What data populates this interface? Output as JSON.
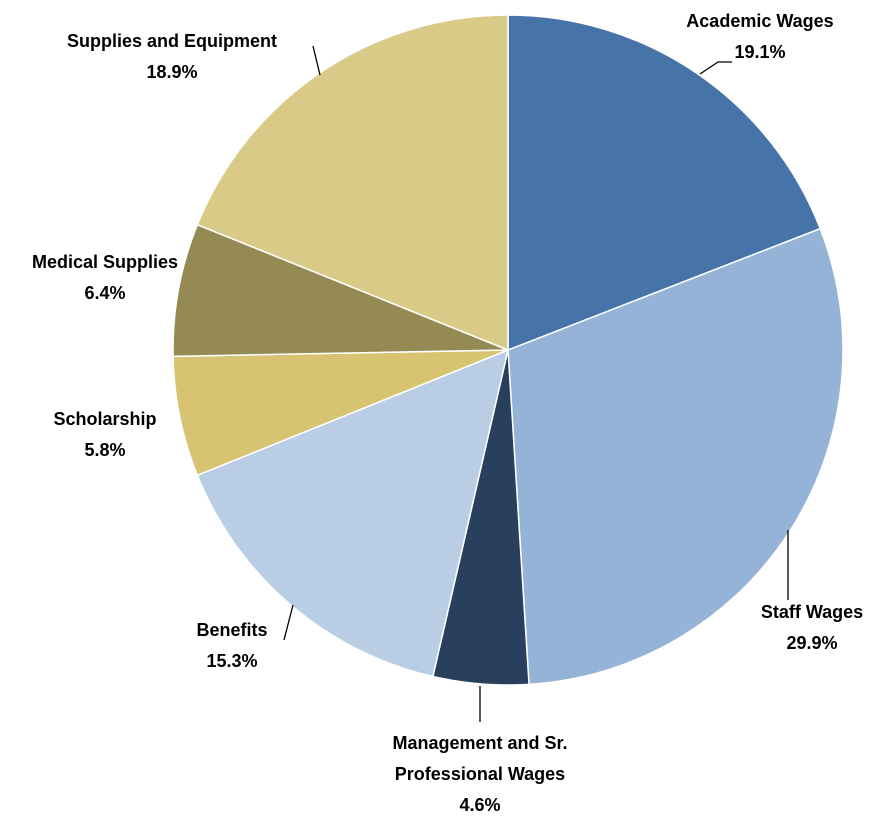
{
  "chart_data": {
    "type": "pie",
    "categories": [
      "Academic Wages",
      "Staff Wages",
      "Management and Sr. Professional Wages",
      "Benefits",
      "Scholarship",
      "Medical Supplies",
      "Supplies and Equipment"
    ],
    "values": [
      19.1,
      29.9,
      4.6,
      15.3,
      5.8,
      6.4,
      18.9
    ],
    "value_labels": [
      "19.1%",
      "29.9%",
      "4.6%",
      "15.3%",
      "5.8%",
      "6.4%",
      "18.9%"
    ],
    "colors": [
      "#4673a8",
      "#95b3d7",
      "#283f5e",
      "#b9cde5",
      "#d7c372",
      "#958a54",
      "#d9cb87"
    ]
  }
}
